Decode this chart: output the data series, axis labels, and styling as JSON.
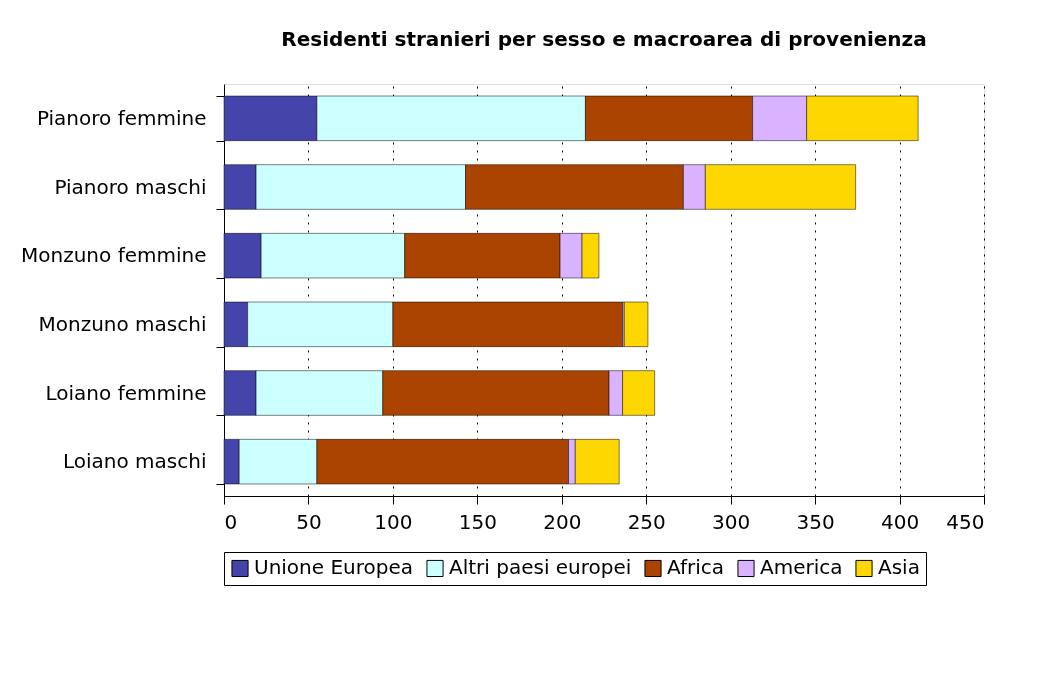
{
  "chart_data": {
    "type": "bar",
    "orientation": "horizontal",
    "stacked": true,
    "title": "Residenti stranieri per sesso e macroarea di provenienza",
    "categories": [
      "Pianoro femmine",
      "Pianoro maschi",
      "Monzuno femmine",
      "Monzuno maschi",
      "Loiano femmine",
      "Loiano maschi"
    ],
    "series": [
      {
        "name": "Unione Europea",
        "color": "#4444aa",
        "values": [
          55,
          19,
          22,
          14,
          19,
          9
        ]
      },
      {
        "name": "Altri paesi europei",
        "color": "#ccffff",
        "values": [
          159,
          124,
          85,
          86,
          75,
          46
        ]
      },
      {
        "name": "Africa",
        "color": "#aa4400",
        "values": [
          99,
          129,
          92,
          136,
          134,
          149
        ]
      },
      {
        "name": "America",
        "color": "#d9b3ff",
        "values": [
          32,
          13,
          13,
          1,
          8,
          4
        ]
      },
      {
        "name": "Asia",
        "color": "#ffd700",
        "values": [
          66,
          89,
          10,
          14,
          19,
          26
        ]
      }
    ],
    "xlim": [
      0,
      450
    ],
    "xticks": [
      0,
      50,
      100,
      150,
      200,
      250,
      300,
      350,
      400,
      450
    ],
    "grid": "x",
    "legend": "bottom"
  }
}
